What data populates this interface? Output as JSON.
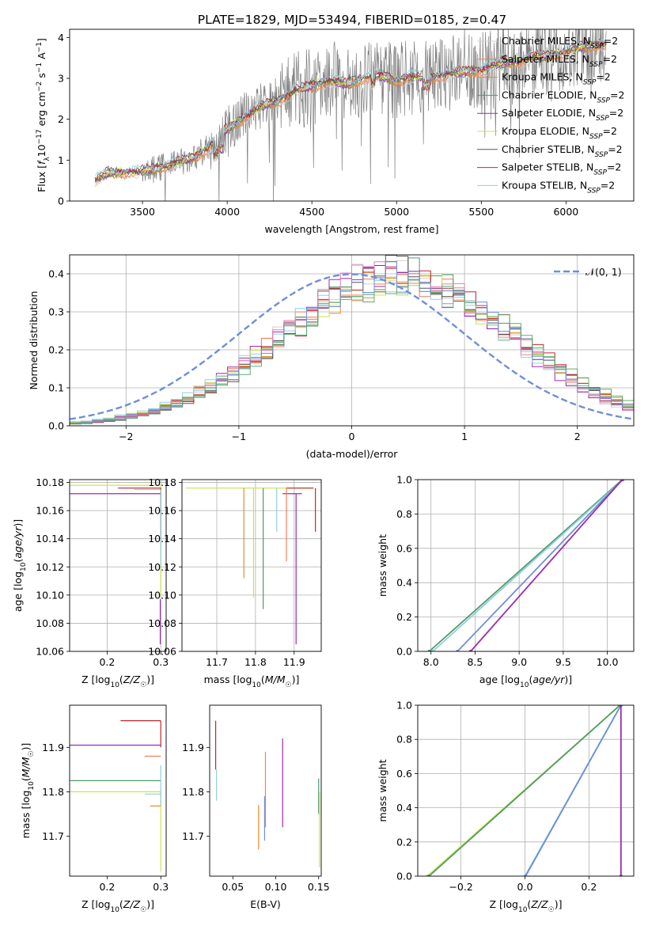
{
  "figure": {
    "title": "PLATE=1829, MJD=53494, FIBERID=0185, z=0.47"
  },
  "colors": {
    "Chabrier MILES": "#d0d0d0",
    "Salpeter MILES": "#f07f5a",
    "Kroupa MILES": "#e8892a",
    "Chabrier ELODIE": "#4f9a6a",
    "Salpeter ELODIE": "#9a2bb2",
    "Kroupa ELODIE": "#c8e64a",
    "Chabrier STELIB": "#555555",
    "Salpeter STELIB": "#c0262b",
    "Kroupa STELIB": "#8fd0dd",
    "normal": "#6e8fd8",
    "data": "#808080",
    "extra_blue": "#6e8fd8",
    "extra_pink": "#e57fb4",
    "extra_green": "#5fae6e"
  },
  "legend1": [
    {
      "model": "Chabrier MILES",
      "label": "Chabrier MILES, N",
      "sub": "SSP",
      "suffix": "=2"
    },
    {
      "model": "Salpeter MILES",
      "label": "Salpeter MILES, N",
      "sub": "SSP",
      "suffix": "=2"
    },
    {
      "model": "Kroupa MILES",
      "label": "Kroupa MILES, N",
      "sub": "SSP",
      "suffix": "=2"
    },
    {
      "model": "Chabrier ELODIE",
      "label": "Chabrier ELODIE, N",
      "sub": "SSP",
      "suffix": "=2"
    },
    {
      "model": "Salpeter ELODIE",
      "label": "Salpeter ELODIE, N",
      "sub": "SSP",
      "suffix": "=2"
    },
    {
      "model": "Kroupa ELODIE",
      "label": "Kroupa ELODIE, N",
      "sub": "SSP",
      "suffix": "=2"
    },
    {
      "model": "Chabrier STELIB",
      "label": "Chabrier STELIB, N",
      "sub": "SSP",
      "suffix": "=2"
    },
    {
      "model": "Salpeter STELIB",
      "label": "Salpeter STELIB, N",
      "sub": "SSP",
      "suffix": "=2"
    },
    {
      "model": "Kroupa STELIB",
      "label": "Kroupa STELIB, N",
      "sub": "SSP",
      "suffix": "=2"
    }
  ],
  "chart_data": [
    {
      "id": "spectrum",
      "type": "line",
      "xlabel": "wavelength [Angstrom, rest frame]",
      "ylabel": "Flux [f_λ 10^-17 erg cm^-2 s^-1 A^-1]",
      "xlim": [
        3070,
        6400
      ],
      "ylim": [
        0,
        4.2
      ],
      "xticks": [
        3500,
        4000,
        4500,
        5000,
        5500,
        6000
      ],
      "yticks": [
        0,
        1,
        2,
        3,
        4
      ],
      "legend": "top-right",
      "grid": false,
      "continuum": {
        "x": [
          3220,
          3300,
          3500,
          3600,
          3700,
          3800,
          3900,
          4000,
          4100,
          4200,
          4300,
          4400,
          4500,
          4600,
          4700,
          4800,
          4900,
          5000,
          5100,
          5200,
          5300,
          5400,
          5500,
          5600,
          5700,
          5800,
          5900,
          6000,
          6100,
          6200
        ],
        "y": [
          0.5,
          0.68,
          0.72,
          0.8,
          0.95,
          1.05,
          1.35,
          1.75,
          2.05,
          2.3,
          2.45,
          2.7,
          2.8,
          2.95,
          2.85,
          3.0,
          3.05,
          2.95,
          3.05,
          3.0,
          3.1,
          3.15,
          3.2,
          3.35,
          3.4,
          3.5,
          3.55,
          3.65,
          3.75,
          3.85
        ]
      }
    },
    {
      "id": "residuals",
      "type": "line",
      "xlabel": "(data-model)/error",
      "ylabel": "Normed distribution",
      "xlim": [
        -2.5,
        2.5
      ],
      "ylim": [
        0,
        0.45
      ],
      "xticks": [
        -2,
        -1,
        0,
        1,
        2
      ],
      "yticks": [
        0.0,
        0.1,
        0.2,
        0.3,
        0.4
      ],
      "grid": true,
      "legend": "top-right",
      "legend_label": "𝒩(0, 1)",
      "hist_bins": [
        -2.5,
        2.5,
        50
      ]
    },
    {
      "id": "age_vs_Z",
      "type": "line",
      "xlabel": "Z [log₁₀(Z/Z☉)]",
      "ylabel": "age  [log₁₀(age/yr)]",
      "xlim": [
        0.13,
        0.31
      ],
      "ylim": [
        10.06,
        10.182
      ],
      "xticks": [
        0.2,
        0.3
      ],
      "yticks": [
        10.06,
        10.08,
        10.1,
        10.12,
        10.14,
        10.16,
        10.18
      ],
      "grid": true,
      "series": [
        {
          "model": "Kroupa ELODIE",
          "hline": [
            10.178,
            0.13,
            0.3
          ],
          "vline": [
            0.3,
            10.1,
            10.178
          ]
        },
        {
          "model": "Salpeter STELIB",
          "hline": [
            10.176,
            0.22,
            0.3
          ],
          "vline": [
            0.3,
            10.14,
            10.176
          ]
        },
        {
          "model": "Salpeter ELODIE",
          "hline": [
            10.172,
            0.13,
            0.3
          ],
          "vline": [
            0.299,
            10.065,
            10.097
          ]
        },
        {
          "model": "Kroupa STELIB",
          "hline": [
            10.175,
            0.25,
            0.3
          ],
          "vline": [
            0.3,
            10.12,
            10.175
          ]
        }
      ]
    },
    {
      "id": "age_vs_mass",
      "type": "line",
      "xlabel": "mass [log₁₀(M/M☉)]",
      "ylabel": "",
      "xlim": [
        11.61,
        11.97
      ],
      "ylim": [
        10.06,
        10.182
      ],
      "xticks": [
        11.7,
        11.8,
        11.9
      ],
      "yticks": [
        10.06,
        10.08,
        10.1,
        10.12,
        10.14,
        10.16,
        10.18
      ],
      "grid": true,
      "series": [
        {
          "model": "Kroupa ELODIE",
          "hline": [
            10.176,
            11.62,
            11.95
          ],
          "vline": [
            11.795,
            10.098,
            10.176
          ]
        },
        {
          "model": "Salpeter STELIB",
          "hline": [
            10.176,
            11.88,
            11.95
          ],
          "vline": [
            11.955,
            10.145,
            10.176
          ]
        },
        {
          "model": "Salpeter ELODIE",
          "hline": [
            10.172,
            11.87,
            11.92
          ],
          "vline": [
            11.905,
            10.065,
            10.172
          ]
        },
        {
          "model": "Chabrier ELODIE",
          "vline": [
            11.82,
            10.09,
            10.176
          ]
        },
        {
          "model": "Kroupa MILES",
          "vline": [
            11.77,
            10.112,
            10.176
          ]
        },
        {
          "model": "Kroupa STELIB",
          "vline": [
            11.855,
            10.145,
            10.176
          ]
        },
        {
          "model": "Salpeter MILES",
          "vline": [
            11.88,
            10.124,
            10.176
          ]
        }
      ]
    },
    {
      "id": "mass_weight_vs_age",
      "type": "line",
      "xlabel": "age  [log₁₀(age/yr)]",
      "ylabel": "mass weight",
      "xlim": [
        7.85,
        10.3
      ],
      "ylim": [
        0,
        1
      ],
      "xticks": [
        8.0,
        8.5,
        9.0,
        9.5,
        10.0
      ],
      "yticks": [
        0.0,
        0.2,
        0.4,
        0.6,
        0.8,
        1.0
      ],
      "grid": true,
      "series": [
        {
          "model": "Chabrier ELODIE",
          "x": [
            7.98,
            10.17
          ],
          "y": [
            0,
            1
          ]
        },
        {
          "model": "Kroupa STELIB",
          "x": [
            8.02,
            10.18
          ],
          "y": [
            0,
            1
          ]
        },
        {
          "model": "normal",
          "x": [
            8.3,
            10.17
          ],
          "y": [
            0,
            1
          ]
        },
        {
          "model": "Salpeter ELODIE",
          "x": [
            8.45,
            10.17
          ],
          "y": [
            0,
            1
          ]
        }
      ]
    },
    {
      "id": "mass_vs_Z",
      "type": "line",
      "xlabel": "Z [log₁₀(Z/Z☉)]",
      "ylabel": "mass [log₁₀(M/M☉)]",
      "xlim": [
        0.13,
        0.31
      ],
      "ylim": [
        11.61,
        11.995
      ],
      "xticks": [
        0.2,
        0.3
      ],
      "yticks": [
        11.7,
        11.8,
        11.9
      ],
      "grid": false,
      "series": [
        {
          "model": "Salpeter STELIB",
          "hline": [
            11.96,
            0.225,
            0.3
          ],
          "vline": [
            0.3,
            11.9,
            11.96
          ]
        },
        {
          "model": "Salpeter ELODIE",
          "hline": [
            11.905,
            0.13,
            0.3
          ]
        },
        {
          "model": "Salpeter MILES",
          "hline": [
            11.88,
            0.27,
            0.3
          ]
        },
        {
          "model": "Chabrier ELODIE",
          "hline": [
            11.825,
            0.13,
            0.3
          ]
        },
        {
          "model": "Kroupa ELODIE",
          "hline": [
            11.8,
            0.13,
            0.3
          ],
          "vline": [
            0.3,
            11.62,
            11.8
          ]
        },
        {
          "model": "Kroupa STELIB",
          "hline": [
            11.795,
            0.27,
            0.3
          ],
          "vline": [
            0.3,
            11.77,
            11.86
          ]
        },
        {
          "model": "Kroupa MILES",
          "hline": [
            11.768,
            0.28,
            0.3
          ]
        }
      ]
    },
    {
      "id": "mass_vs_ebv",
      "type": "line",
      "xlabel": "E(B-V)",
      "ylabel": "",
      "xlim": [
        0.023,
        0.153
      ],
      "ylim": [
        11.61,
        11.995
      ],
      "xticks": [
        0.05,
        0.1,
        0.15
      ],
      "yticks": [
        11.7,
        11.8,
        11.9
      ],
      "grid": false,
      "series": [
        {
          "model": "Salpeter STELIB",
          "vline": [
            0.03,
            11.85,
            11.96
          ]
        },
        {
          "model": "Kroupa STELIB",
          "vline": [
            0.031,
            11.78,
            11.85
          ]
        },
        {
          "model": "Kroupa MILES",
          "vline": [
            0.08,
            11.67,
            11.77
          ]
        },
        {
          "model": "normal",
          "vline": [
            0.087,
            11.69,
            11.79
          ]
        },
        {
          "model": "Salpeter MILES",
          "vline": [
            0.088,
            11.72,
            11.89
          ]
        },
        {
          "model": "Salpeter ELODIE",
          "vline": [
            0.108,
            11.72,
            11.92
          ]
        },
        {
          "model": "Chabrier ELODIE",
          "vline": [
            0.15,
            11.75,
            11.83
          ]
        },
        {
          "model": "Kroupa ELODIE",
          "vline": [
            0.151,
            11.63,
            11.8
          ]
        }
      ]
    },
    {
      "id": "mass_weight_vs_Z",
      "type": "line",
      "xlabel": "Z [log₁₀(Z/Z☉)]",
      "ylabel": "mass weight",
      "xlim": [
        -0.335,
        0.34
      ],
      "ylim": [
        0,
        1
      ],
      "xticks": [
        -0.2,
        0.0,
        0.2
      ],
      "yticks": [
        0.0,
        0.2,
        0.4,
        0.6,
        0.8,
        1.0
      ],
      "grid": true,
      "series": [
        {
          "model": "Kroupa ELODIE",
          "x": [
            -0.305,
            0.297
          ],
          "y": [
            0,
            1
          ]
        },
        {
          "model": "Chabrier ELODIE",
          "x": [
            -0.3,
            0.297
          ],
          "y": [
            0,
            1
          ]
        },
        {
          "model": "Kroupa STELIB",
          "x": [
            0.0,
            0.3
          ],
          "y": [
            0,
            1
          ]
        },
        {
          "model": "normal",
          "x": [
            0.002,
            0.3
          ],
          "y": [
            0,
            1
          ]
        },
        {
          "model": "Salpeter ELODIE",
          "x": [
            0.3,
            0.3
          ],
          "y": [
            0,
            1
          ]
        }
      ]
    }
  ]
}
